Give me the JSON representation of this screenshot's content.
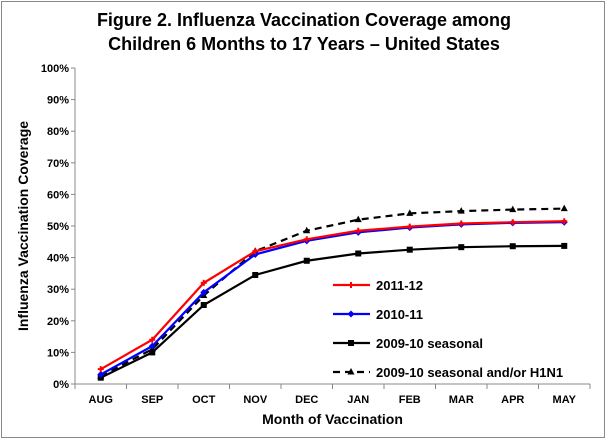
{
  "chart_data": {
    "type": "line",
    "title_line1": "Figure 2. Influenza Vaccination Coverage among",
    "title_line2": "Children 6 Months to 17 Years – United States",
    "xlabel": "Month of Vaccination",
    "ylabel": "Influenza Vaccination Coverage",
    "categories": [
      "AUG",
      "SEP",
      "OCT",
      "NOV",
      "DEC",
      "JAN",
      "FEB",
      "MAR",
      "APR",
      "MAY"
    ],
    "ylim": [
      0,
      100
    ],
    "yticks": [
      "0%",
      "10%",
      "20%",
      "30%",
      "40%",
      "50%",
      "60%",
      "70%",
      "80%",
      "90%",
      "100%"
    ],
    "legend_position": "center-right",
    "series": [
      {
        "name": "2011-12",
        "color": "#ff0000",
        "dash": false,
        "marker": "plus",
        "values": [
          4.7,
          14,
          32,
          42,
          45.8,
          48.5,
          49.8,
          50.8,
          51.2,
          51.5
        ]
      },
      {
        "name": "2010-11",
        "color": "#0000ff",
        "dash": false,
        "marker": "diamond",
        "values": [
          3,
          12,
          29,
          41,
          45.3,
          48,
          49.5,
          50.5,
          51,
          51.2
        ]
      },
      {
        "name": "2009-10 seasonal",
        "color": "#000000",
        "dash": false,
        "marker": "square",
        "values": [
          2,
          10,
          25,
          34.5,
          39,
          41.3,
          42.5,
          43.3,
          43.6,
          43.7
        ]
      },
      {
        "name": "2009-10 seasonal and/or H1N1",
        "color": "#000000",
        "dash": true,
        "marker": "triangle",
        "values": [
          2.5,
          11,
          28,
          42,
          48.5,
          52,
          54,
          54.7,
          55.2,
          55.5
        ]
      }
    ]
  }
}
